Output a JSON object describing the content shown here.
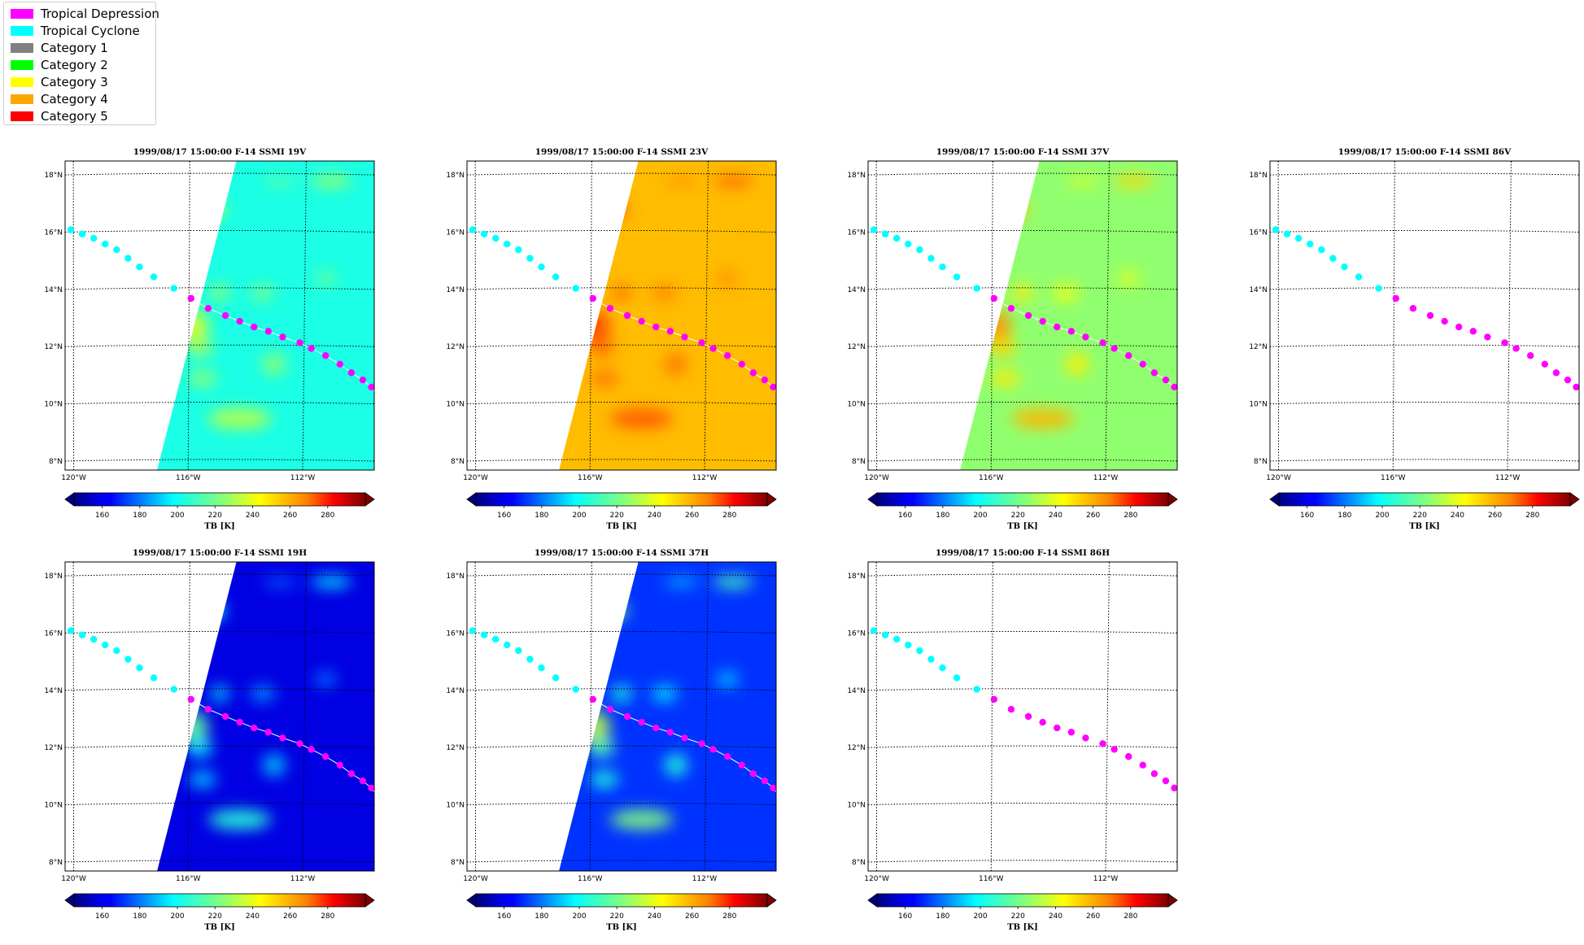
{
  "legend": {
    "items": [
      {
        "label": "Tropical Depression",
        "color": "#ff00ff"
      },
      {
        "label": "Tropical Cyclone",
        "color": "#00ffff"
      },
      {
        "label": "Category 1",
        "color": "#808080"
      },
      {
        "label": "Category 2",
        "color": "#00ff00"
      },
      {
        "label": "Category 3",
        "color": "#ffff00"
      },
      {
        "label": "Category 4",
        "color": "#ffa500"
      },
      {
        "label": "Category 5",
        "color": "#ff0000"
      }
    ]
  },
  "map": {
    "lon_range": [
      -120.3,
      -109.5
    ],
    "lat_range": [
      7.6,
      18.4
    ],
    "lon_ticks": [
      {
        "value": -120,
        "label": "120°W"
      },
      {
        "value": -116,
        "label": "116°W"
      },
      {
        "value": -112,
        "label": "112°W"
      }
    ],
    "lat_ticks": [
      {
        "value": 8,
        "label": "8°N"
      },
      {
        "value": 10,
        "label": "10°N"
      },
      {
        "value": 12,
        "label": "12°N"
      },
      {
        "value": 14,
        "label": "14°N"
      },
      {
        "value": 16,
        "label": "16°N"
      },
      {
        "value": 18,
        "label": "18°N"
      }
    ],
    "colorbar": {
      "label": "TB [K]",
      "ticks": [
        160,
        180,
        200,
        220,
        240,
        260,
        280
      ],
      "range": [
        145,
        300
      ],
      "colormap": "jet"
    }
  },
  "track": {
    "points": [
      {
        "lon": -120.1,
        "lat": 16.0,
        "status": "Tropical Cyclone"
      },
      {
        "lon": -119.7,
        "lat": 15.85,
        "status": "Tropical Cyclone"
      },
      {
        "lon": -119.3,
        "lat": 15.7,
        "status": "Tropical Cyclone"
      },
      {
        "lon": -118.9,
        "lat": 15.5,
        "status": "Tropical Cyclone"
      },
      {
        "lon": -118.5,
        "lat": 15.3,
        "status": "Tropical Cyclone"
      },
      {
        "lon": -118.1,
        "lat": 15.0,
        "status": "Tropical Cyclone"
      },
      {
        "lon": -117.7,
        "lat": 14.7,
        "status": "Tropical Cyclone"
      },
      {
        "lon": -117.2,
        "lat": 14.35,
        "status": "Tropical Cyclone"
      },
      {
        "lon": -116.5,
        "lat": 13.95,
        "status": "Tropical Cyclone"
      },
      {
        "lon": -115.9,
        "lat": 13.6,
        "status": "Tropical Depression"
      },
      {
        "lon": -115.3,
        "lat": 13.25,
        "status": "Tropical Depression"
      },
      {
        "lon": -114.7,
        "lat": 13.0,
        "status": "Tropical Depression"
      },
      {
        "lon": -114.2,
        "lat": 12.8,
        "status": "Tropical Depression"
      },
      {
        "lon": -113.7,
        "lat": 12.6,
        "status": "Tropical Depression"
      },
      {
        "lon": -113.2,
        "lat": 12.45,
        "status": "Tropical Depression"
      },
      {
        "lon": -112.7,
        "lat": 12.25,
        "status": "Tropical Depression"
      },
      {
        "lon": -112.1,
        "lat": 12.05,
        "status": "Tropical Depression"
      },
      {
        "lon": -111.7,
        "lat": 11.85,
        "status": "Tropical Depression"
      },
      {
        "lon": -111.2,
        "lat": 11.6,
        "status": "Tropical Depression"
      },
      {
        "lon": -110.7,
        "lat": 11.3,
        "status": "Tropical Depression"
      },
      {
        "lon": -110.3,
        "lat": 11.0,
        "status": "Tropical Depression"
      },
      {
        "lon": -109.9,
        "lat": 10.75,
        "status": "Tropical Depression"
      },
      {
        "lon": -109.6,
        "lat": 10.5,
        "status": "Tropical Depression"
      }
    ]
  },
  "panels": [
    {
      "title": "1999/08/17 15:00:00  F-14 SSMI 19V",
      "channel": "19V",
      "has_swath": true,
      "base_tb": 207,
      "feature_tb": 237
    },
    {
      "title": "1999/08/17 15:00:00  F-14 SSMI 23V",
      "channel": "23V",
      "has_swath": true,
      "base_tb": 252,
      "feature_tb": 270
    },
    {
      "title": "1999/08/17 15:00:00  F-14 SSMI 37V",
      "channel": "37V",
      "has_swath": true,
      "base_tb": 225,
      "feature_tb": 258
    },
    {
      "title": "1999/08/17 15:00:00  F-14 SSMI 86V",
      "channel": "86V",
      "has_swath": false
    },
    {
      "title": "1999/08/17 15:00:00  F-14 SSMI 19H",
      "channel": "19H",
      "has_swath": true,
      "base_tb": 160,
      "feature_tb": 218
    },
    {
      "title": "1999/08/17 15:00:00  F-14 SSMI 37H",
      "channel": "37H",
      "has_swath": true,
      "base_tb": 172,
      "feature_tb": 232
    },
    {
      "title": "1999/08/17 15:00:00  F-14 SSMI 86H",
      "channel": "86H",
      "has_swath": false
    }
  ]
}
